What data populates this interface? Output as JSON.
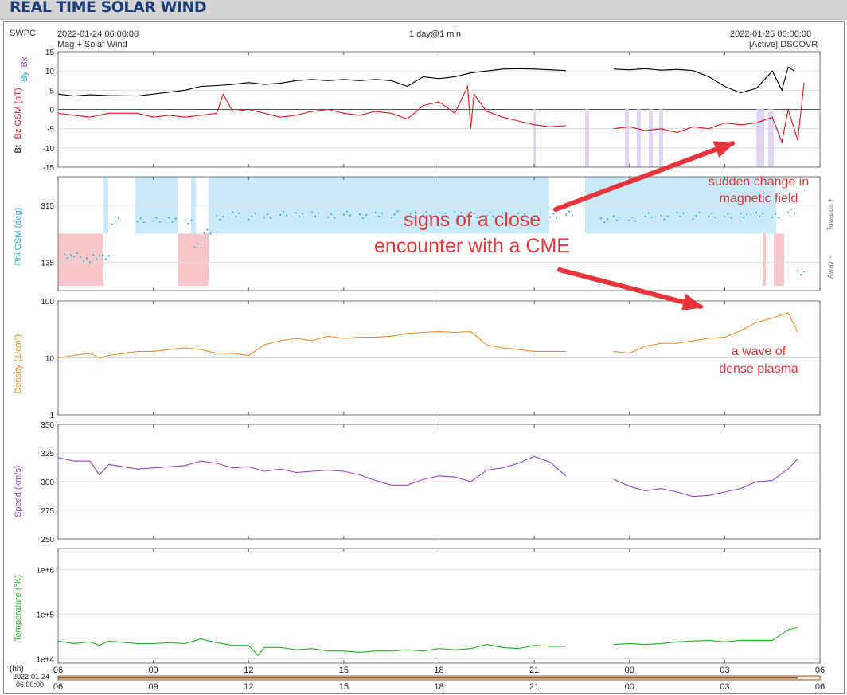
{
  "page": {
    "title": "REAL TIME SOLAR WIND",
    "source": "SWPC",
    "start_time": "2022-01-24 06:00:00",
    "end_time": "2022-01-25 06:00:00",
    "span": "1 day@1 min",
    "product": "Mag + Solar Wind",
    "spacecraft": "[Active] DSCOVR",
    "hh_label": "(hh)",
    "footer_date": "2022-01-24",
    "footer_time": "06:00:00",
    "right_label_top": "Towards +",
    "right_label_bottom": "Away −"
  },
  "annotations": {
    "main": [
      "signs of a close",
      "encounter with a CME"
    ],
    "field": [
      "sudden change in",
      "magnetic field"
    ],
    "plasma": [
      "a wave of",
      "dense plasma"
    ],
    "color": "#e8343a"
  },
  "chart_data": [
    {
      "type": "line",
      "panel": "magnetic field",
      "ylabel_parts": [
        "Bt",
        "Bz GSM (nT)",
        "By",
        "Bx"
      ],
      "ylim": [
        -15,
        15
      ],
      "yticks": [
        "15",
        "10",
        "5",
        "0",
        "-5",
        "-10",
        "-15"
      ],
      "x_hours": [
        6,
        9,
        12,
        15,
        18,
        21,
        24,
        27,
        30
      ],
      "xtick_labels": [
        "06",
        "09",
        "12",
        "15",
        "18",
        "21",
        "00",
        "03",
        "06"
      ],
      "series": [
        {
          "name": "Bt",
          "color": "#000000",
          "x": [
            6.0,
            6.5,
            7.0,
            7.6,
            8.5,
            9.0,
            9.5,
            10.0,
            10.5,
            11.0,
            11.5,
            12.0,
            12.5,
            13.0,
            13.5,
            14.0,
            14.5,
            15.0,
            15.5,
            16.0,
            16.5,
            17.0,
            17.5,
            18.0,
            18.5,
            19.0,
            19.5,
            20.0,
            20.5,
            21.0,
            21.5,
            22.0,
            23.1,
            23.5,
            24.0,
            24.5,
            25.0,
            25.5,
            26.0,
            26.5,
            27.0,
            27.5,
            28.0,
            28.5,
            28.8,
            29.0,
            29.2
          ],
          "y": [
            4,
            3.5,
            3.8,
            3.6,
            3.5,
            4,
            4.5,
            5,
            6,
            6.2,
            6.5,
            7,
            6.5,
            6.8,
            7.5,
            7.8,
            7.5,
            7.8,
            7.5,
            7.8,
            7.5,
            6,
            8.5,
            8,
            8.5,
            9.5,
            10,
            10.5,
            10.6,
            10.5,
            10.3,
            10.1,
            null,
            10.5,
            10.3,
            10.6,
            10.2,
            10.4,
            10.1,
            8.5,
            6,
            4.3,
            5.5,
            10,
            5,
            11,
            10
          ]
        },
        {
          "name": "Bz GSM",
          "color": "#e8141e",
          "x": [
            6.0,
            6.5,
            7.0,
            7.6,
            8.5,
            9.0,
            9.5,
            10.0,
            10.5,
            11.0,
            11.2,
            11.5,
            12.0,
            12.5,
            13.0,
            13.5,
            14.0,
            14.5,
            15.0,
            15.5,
            16.0,
            16.5,
            17.0,
            17.5,
            18.0,
            18.5,
            18.9,
            19.0,
            19.1,
            19.5,
            20.0,
            20.5,
            21.0,
            21.5,
            22.0,
            23.1,
            23.5,
            24.0,
            24.5,
            25.0,
            25.5,
            26.0,
            26.5,
            27.0,
            27.5,
            28.0,
            28.5,
            28.8,
            29.0,
            29.3,
            29.5
          ],
          "y": [
            -1,
            -1.5,
            -2,
            -1,
            -1,
            -2,
            -1.5,
            -2,
            -1.5,
            -1,
            4,
            -0.5,
            0,
            -1,
            -2,
            -1.5,
            -0.5,
            0,
            -1,
            -1.5,
            -0.5,
            -1,
            -2.5,
            1,
            2,
            -1,
            6,
            -5,
            4,
            -0.5,
            -2,
            -3,
            -4,
            -4.5,
            -4.2,
            null,
            -5,
            -4.5,
            -5.5,
            -5,
            -6,
            -4.5,
            -5,
            -3.5,
            -4,
            -3.5,
            -2,
            -8.5,
            0,
            -8,
            7
          ]
        }
      ]
    },
    {
      "type": "scatter",
      "panel": "phi angle",
      "ylabel": "Phi GSM (deg)",
      "ylim": [
        45,
        405
      ],
      "yticks": [
        "315",
        "135"
      ],
      "x_hours": [
        6,
        9,
        12,
        15,
        18,
        21,
        24,
        27,
        30
      ],
      "away_band_deg": [
        45,
        225
      ],
      "toward_band_deg": [
        225,
        405
      ],
      "series": [
        {
          "name": "Phi GSM",
          "color": "#1ea8d8",
          "x": [
            6.2,
            6.5,
            6.8,
            7.1,
            7.4,
            7.7,
            8.5,
            9.0,
            9.5,
            10.0,
            10.3,
            10.6,
            11.0,
            11.5,
            12.0,
            12.5,
            13.0,
            13.5,
            14.0,
            14.5,
            15.0,
            15.5,
            16.0,
            16.5,
            17.0,
            17.5,
            18.0,
            18.5,
            19.0,
            19.5,
            20.0,
            20.5,
            21.0,
            21.5,
            22.0,
            23.1,
            23.5,
            24.0,
            24.5,
            25.0,
            25.5,
            26.0,
            26.5,
            27.0,
            27.5,
            28.0,
            28.5,
            29.0,
            29.3
          ],
          "y": [
            150,
            160,
            140,
            155,
            150,
            265,
            268,
            265,
            270,
            260,
            190,
            230,
            280,
            285,
            280,
            282,
            285,
            286,
            283,
            285,
            288,
            284,
            285,
            286,
            283,
            285,
            287,
            284,
            286,
            285,
            288,
            282,
            281,
            283,
            285,
            268,
            270,
            275,
            283,
            280,
            285,
            282,
            285,
            278,
            284,
            282,
            285,
            295,
            105
          ]
        }
      ]
    },
    {
      "type": "line",
      "panel": "density",
      "ylabel": "Density (1/cm³)",
      "yscale": "log",
      "ylim": [
        1,
        100
      ],
      "yticks": [
        "100",
        "10",
        "1"
      ],
      "x_hours": [
        6,
        9,
        12,
        15,
        18,
        21,
        24,
        27,
        30
      ],
      "series": [
        {
          "name": "Density",
          "color": "#f08a24",
          "x": [
            6.0,
            6.5,
            7.0,
            7.3,
            7.6,
            8.5,
            9.0,
            9.5,
            10.0,
            10.5,
            11.0,
            11.5,
            12.0,
            12.5,
            13.0,
            13.5,
            14.0,
            14.5,
            15.0,
            15.5,
            16.0,
            16.5,
            17.0,
            17.5,
            18.0,
            18.5,
            19.0,
            19.5,
            20.0,
            20.5,
            21.0,
            21.5,
            22.0,
            23.1,
            23.5,
            24.0,
            24.5,
            25.0,
            25.5,
            26.0,
            26.5,
            27.0,
            27.5,
            28.0,
            28.5,
            29.0,
            29.3
          ],
          "y": [
            10,
            11,
            12,
            10,
            11,
            13,
            13,
            14,
            15,
            14,
            12,
            12,
            11,
            17,
            20,
            22,
            20,
            24,
            22,
            23,
            23,
            24,
            27,
            28,
            29,
            28,
            29,
            17,
            15,
            14,
            13,
            13,
            13,
            null,
            13,
            12,
            16,
            18,
            18,
            20,
            22,
            23,
            30,
            42,
            50,
            62,
            28
          ]
        }
      ]
    },
    {
      "type": "line",
      "panel": "speed",
      "ylabel": "Speed (km/s)",
      "ylim": [
        250,
        350
      ],
      "yticks": [
        "350",
        "325",
        "300",
        "275",
        "250"
      ],
      "x_hours": [
        6,
        9,
        12,
        15,
        18,
        21,
        24,
        27,
        30
      ],
      "series": [
        {
          "name": "Speed",
          "color": "#9a3ec8",
          "x": [
            6.0,
            6.5,
            7.0,
            7.3,
            7.6,
            8.5,
            9.0,
            9.5,
            10.0,
            10.5,
            11.0,
            11.5,
            12.0,
            12.5,
            13.0,
            13.5,
            14.0,
            14.5,
            15.0,
            15.5,
            16.0,
            16.5,
            17.0,
            17.5,
            18.0,
            18.5,
            19.0,
            19.5,
            20.0,
            20.5,
            21.0,
            21.5,
            22.0,
            23.1,
            23.5,
            24.0,
            24.5,
            25.0,
            25.5,
            26.0,
            26.5,
            27.0,
            27.5,
            28.0,
            28.5,
            29.0,
            29.3
          ],
          "y": [
            321,
            318,
            318,
            306,
            315,
            311,
            312,
            313,
            314,
            318,
            316,
            312,
            313,
            309,
            311,
            308,
            309,
            310,
            309,
            306,
            301,
            297,
            297,
            302,
            305,
            304,
            300,
            310,
            312,
            316,
            322,
            317,
            305,
            null,
            302,
            296,
            292,
            294,
            291,
            287,
            288,
            291,
            294,
            300,
            301,
            311,
            320
          ]
        }
      ]
    },
    {
      "type": "line",
      "panel": "temperature",
      "ylabel": "Temperature (°K)",
      "yscale": "log",
      "ylim": [
        8000,
        3000000
      ],
      "yticks": [
        "1e+6",
        "1e+5",
        "1e+4"
      ],
      "x_hours": [
        6,
        9,
        12,
        15,
        18,
        21,
        24,
        27,
        30
      ],
      "series": [
        {
          "name": "Temperature",
          "color": "#1eb41e",
          "x": [
            6.0,
            6.5,
            7.0,
            7.3,
            7.6,
            8.5,
            9.0,
            9.5,
            10.0,
            10.5,
            11.0,
            11.5,
            12.0,
            12.3,
            12.5,
            13.0,
            13.5,
            14.0,
            14.5,
            15.0,
            15.5,
            16.0,
            16.5,
            17.0,
            17.5,
            18.0,
            18.5,
            19.0,
            19.5,
            20.0,
            20.5,
            21.0,
            21.5,
            22.0,
            23.1,
            23.5,
            24.0,
            24.5,
            25.0,
            25.5,
            26.0,
            26.5,
            27.0,
            27.5,
            28.0,
            28.5,
            29.0,
            29.3
          ],
          "y": [
            25000,
            22000,
            24000,
            20000,
            25000,
            22000,
            22000,
            23000,
            22000,
            28000,
            23000,
            20000,
            20000,
            12000,
            18000,
            18000,
            16000,
            17000,
            15000,
            15000,
            14000,
            15000,
            15000,
            16000,
            15000,
            17000,
            16000,
            17000,
            21000,
            18000,
            17000,
            20000,
            19000,
            19000,
            null,
            21000,
            22000,
            21000,
            22000,
            24000,
            25000,
            26000,
            24000,
            26000,
            26000,
            26000,
            45000,
            50000
          ]
        }
      ]
    }
  ]
}
